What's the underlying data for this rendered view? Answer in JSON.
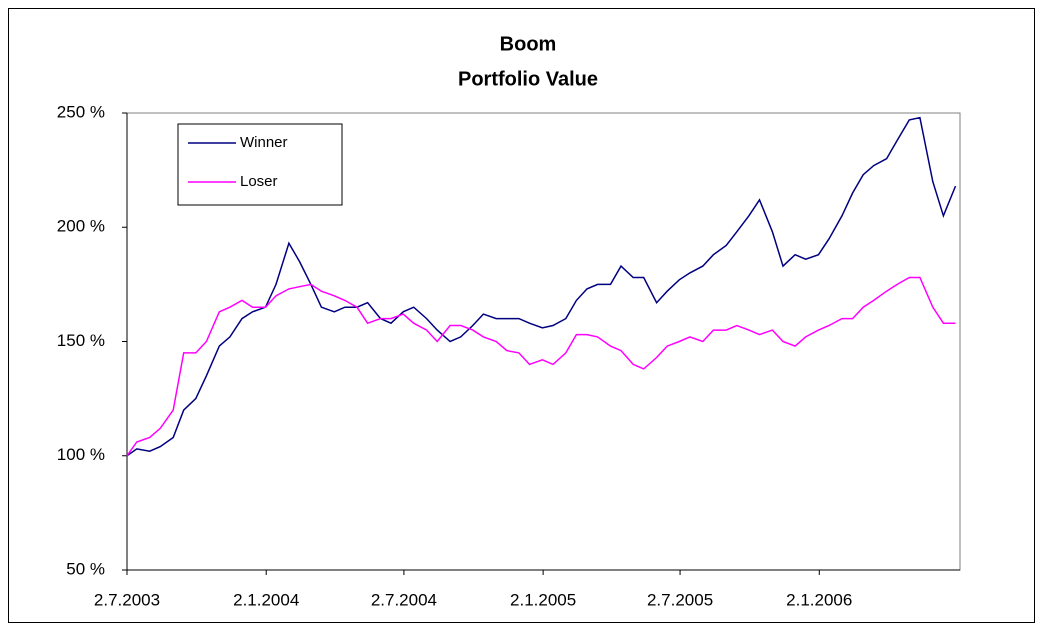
{
  "chart_data": {
    "type": "line",
    "title": "Boom",
    "subtitle": "Portfolio Value",
    "x": [
      "2003-07-02",
      "2003-07-15",
      "2003-08-01",
      "2003-08-15",
      "2003-09-01",
      "2003-09-15",
      "2003-10-01",
      "2003-10-15",
      "2003-11-01",
      "2003-11-15",
      "2003-12-01",
      "2003-12-15",
      "2004-01-01",
      "2004-01-15",
      "2004-02-01",
      "2004-02-15",
      "2004-03-01",
      "2004-03-15",
      "2004-04-01",
      "2004-04-15",
      "2004-05-01",
      "2004-05-15",
      "2004-06-01",
      "2004-06-15",
      "2004-07-01",
      "2004-07-15",
      "2004-08-01",
      "2004-08-15",
      "2004-09-01",
      "2004-09-15",
      "2004-10-01",
      "2004-10-15",
      "2004-11-01",
      "2004-11-15",
      "2004-12-01",
      "2004-12-15",
      "2005-01-01",
      "2005-01-15",
      "2005-02-01",
      "2005-02-15",
      "2005-03-01",
      "2005-03-15",
      "2005-04-01",
      "2005-04-15",
      "2005-05-01",
      "2005-05-15",
      "2005-06-01",
      "2005-06-15",
      "2005-07-01",
      "2005-07-15",
      "2005-08-01",
      "2005-08-15",
      "2005-09-01",
      "2005-09-15",
      "2005-10-01",
      "2005-10-15",
      "2005-11-01",
      "2005-11-15",
      "2005-12-01",
      "2005-12-15",
      "2006-01-01",
      "2006-01-15",
      "2006-02-01",
      "2006-02-15",
      "2006-03-01",
      "2006-03-15",
      "2006-04-01",
      "2006-04-15",
      "2006-05-01",
      "2006-05-15",
      "2006-06-01",
      "2006-06-15",
      "2006-07-01"
    ],
    "series": [
      {
        "name": "Winner",
        "color": "#000080",
        "values": [
          100,
          103,
          102,
          104,
          108,
          120,
          125,
          135,
          148,
          152,
          160,
          163,
          165,
          175,
          193,
          185,
          175,
          165,
          163,
          165,
          165,
          167,
          160,
          158,
          163,
          165,
          160,
          155,
          150,
          152,
          157,
          162,
          160,
          160,
          160,
          158,
          156,
          157,
          160,
          168,
          173,
          175,
          175,
          183,
          178,
          178,
          167,
          172,
          177,
          180,
          183,
          188,
          192,
          198,
          205,
          212,
          198,
          183,
          188,
          186,
          188,
          195,
          205,
          215,
          223,
          227,
          230,
          238,
          247,
          248,
          220,
          205,
          218
        ]
      },
      {
        "name": "Loser",
        "color": "#ff00ff",
        "values": [
          100,
          106,
          108,
          112,
          120,
          145,
          145,
          150,
          163,
          165,
          168,
          165,
          165,
          170,
          173,
          174,
          175,
          172,
          170,
          168,
          165,
          158,
          160,
          160,
          162,
          158,
          155,
          150,
          157,
          157,
          155,
          152,
          150,
          146,
          145,
          140,
          142,
          140,
          145,
          153,
          153,
          152,
          148,
          146,
          140,
          138,
          143,
          148,
          150,
          152,
          150,
          155,
          155,
          157,
          155,
          153,
          155,
          150,
          148,
          152,
          155,
          157,
          160,
          160,
          165,
          168,
          172,
          175,
          178,
          178,
          165,
          158,
          158
        ]
      }
    ],
    "xlim": [
      "2003-07-02",
      "2006-07-07"
    ],
    "xticks": [
      {
        "value": "2003-07-02",
        "label": "2.7.2003"
      },
      {
        "value": "2004-01-02",
        "label": "2.1.2004"
      },
      {
        "value": "2004-07-02",
        "label": "2.7.2004"
      },
      {
        "value": "2005-01-02",
        "label": "2.1.2005"
      },
      {
        "value": "2005-07-02",
        "label": "2.7.2005"
      },
      {
        "value": "2006-01-02",
        "label": "2.1.2006"
      }
    ],
    "ylim": [
      50,
      250
    ],
    "yticks": [
      {
        "value": 50,
        "label": "50 %"
      },
      {
        "value": 100,
        "label": "100 %"
      },
      {
        "value": 150,
        "label": "150 %"
      },
      {
        "value": 200,
        "label": "200 %"
      },
      {
        "value": 250,
        "label": "250 %"
      }
    ],
    "grid": false,
    "legend": "upper left"
  }
}
